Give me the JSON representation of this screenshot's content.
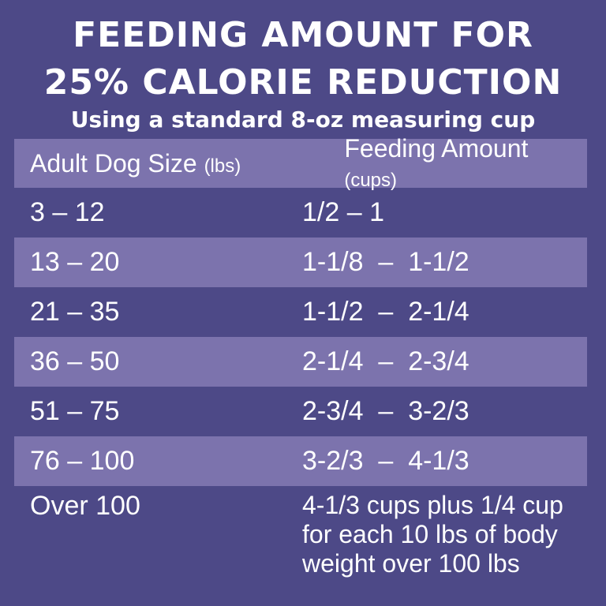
{
  "title": {
    "line1": "FEEDING AMOUNT FOR",
    "line2": "25% CALORIE REDUCTION"
  },
  "subtitle": "Using a standard 8-oz measuring cup",
  "table": {
    "header": {
      "size_label": "Adult Dog Size",
      "size_unit": "(lbs)",
      "amount_label": "Feeding Amount",
      "amount_unit": "(cups)"
    },
    "rows": [
      {
        "size": "3 – 12",
        "amount": "1/2 – 1"
      },
      {
        "size": "13 – 20",
        "amount": "1-1/8  –  1-1/2"
      },
      {
        "size": "21 – 35",
        "amount": "1-1/2  –  2-1/4"
      },
      {
        "size": "36 – 50",
        "amount": "2-1/4  –  2-3/4"
      },
      {
        "size": "51 – 75",
        "amount": "2-3/4  –  3-2/3"
      },
      {
        "size": "76 – 100",
        "amount": "3-2/3  –  4-1/3"
      },
      {
        "size": "Over 100",
        "amount": "4-1/3 cups plus 1/4 cup for each 10 lbs of body weight over 100 lbs"
      }
    ]
  },
  "colors": {
    "background": "#4d4987",
    "row_shade": "#7c73ad",
    "text": "#ffffff"
  }
}
